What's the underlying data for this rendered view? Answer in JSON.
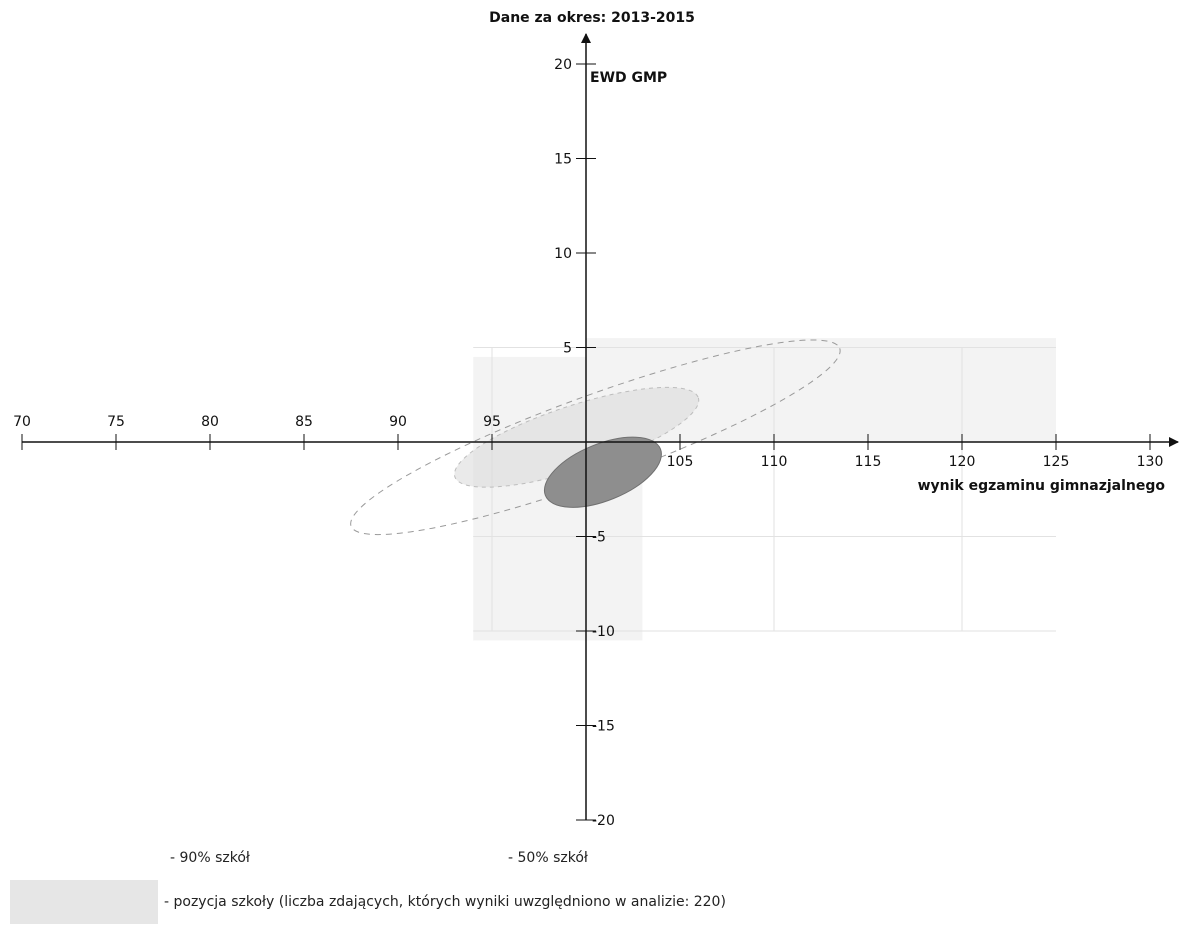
{
  "chart_data": {
    "type": "scatter",
    "title": "Dane za okres: 2013-2015",
    "xlabel": "wynik egzaminu gimnazjalnego",
    "ylabel": "EWD GMP",
    "xlim": [
      70,
      130
    ],
    "ylim": [
      -20,
      20
    ],
    "xticks": [
      70,
      75,
      80,
      85,
      90,
      95,
      105,
      110,
      115,
      120,
      125,
      130
    ],
    "yticks": [
      20,
      15,
      10,
      5,
      -5,
      -10,
      -15,
      -20
    ],
    "reference_lines": {
      "x": 100,
      "y": 0
    },
    "regions": [
      {
        "name": "90% szkół",
        "x_range": [
          88,
          113
        ],
        "y_range": [
          -5,
          5.5
        ],
        "color": "#cfcfcf",
        "style": "dashed-outline"
      },
      {
        "name": "50% szkół",
        "x_range": [
          94,
          105
        ],
        "y_range": [
          -2.5,
          3
        ],
        "color": "#d8d8d8",
        "style": "fill"
      },
      {
        "name": "pozycja szkoły",
        "center_x": 100.9,
        "center_y": -1.6,
        "half_width": 3.3,
        "half_height": 1.5,
        "color": "#8e8e8e"
      }
    ],
    "legend": [
      {
        "text": "- 90% szkół"
      },
      {
        "text": "- 50% szkół"
      },
      {
        "text": "- pozycja szkoły (liczba zdających, których wyniki uwzględniono w analizie: 220)"
      }
    ],
    "colors": {
      "axis": "#111111",
      "grid": "#e2e2e2",
      "bg_band": "#f3f3f3",
      "school": "#8e8e8e"
    }
  }
}
